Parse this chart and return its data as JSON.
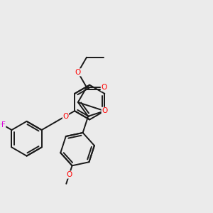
{
  "bg_color": "#ebebeb",
  "bond_color": "#1a1a1a",
  "bond_width": 1.4,
  "atom_colors": {
    "O": "#ff0000",
    "F": "#dd00dd",
    "C": "#1a1a1a"
  },
  "font_size": 7.5,
  "scale": 1.0
}
